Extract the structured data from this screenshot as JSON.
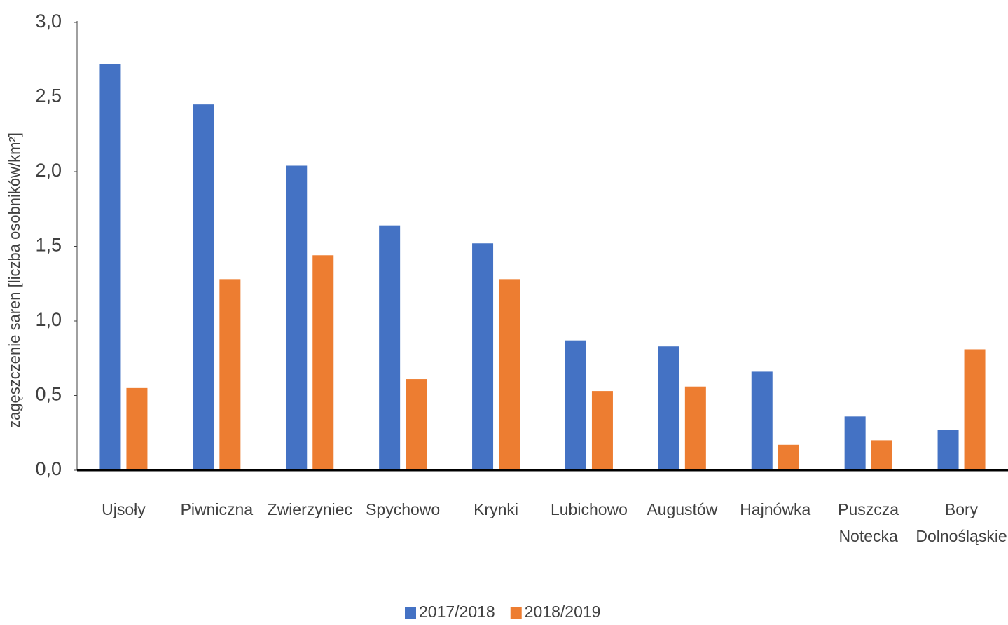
{
  "chart_data": {
    "type": "bar",
    "y_label": "zagęszczenie saren [liczba osobników/km²]",
    "categories": [
      "Ujsoły",
      "Piwniczna",
      "Zwierzyniec",
      "Spychowo",
      "Krynki",
      "Lubichowo",
      "Augustów",
      "Hajnówka",
      "Puszcza Notecka",
      "Bory Dolnośląskie"
    ],
    "series": [
      {
        "name": "2017/2018",
        "color": "#4472c4",
        "values": [
          2.72,
          2.45,
          2.04,
          1.64,
          1.52,
          0.87,
          0.83,
          0.66,
          0.36,
          0.27
        ]
      },
      {
        "name": "2018/2019",
        "color": "#ed7d31",
        "values": [
          0.55,
          1.28,
          1.44,
          0.61,
          1.28,
          0.53,
          0.56,
          0.17,
          0.2,
          0.81
        ]
      }
    ],
    "ylim": [
      0,
      3
    ],
    "yticks": [
      {
        "value": 0,
        "label": "0,0"
      },
      {
        "value": 0.5,
        "label": "0,5"
      },
      {
        "value": 1,
        "label": "1,0"
      },
      {
        "value": 1.5,
        "label": "1,5"
      },
      {
        "value": 2,
        "label": "2,0"
      },
      {
        "value": 2.5,
        "label": "2,5"
      },
      {
        "value": 3,
        "label": "3,0"
      }
    ],
    "grid": false,
    "legend": "bottom"
  }
}
